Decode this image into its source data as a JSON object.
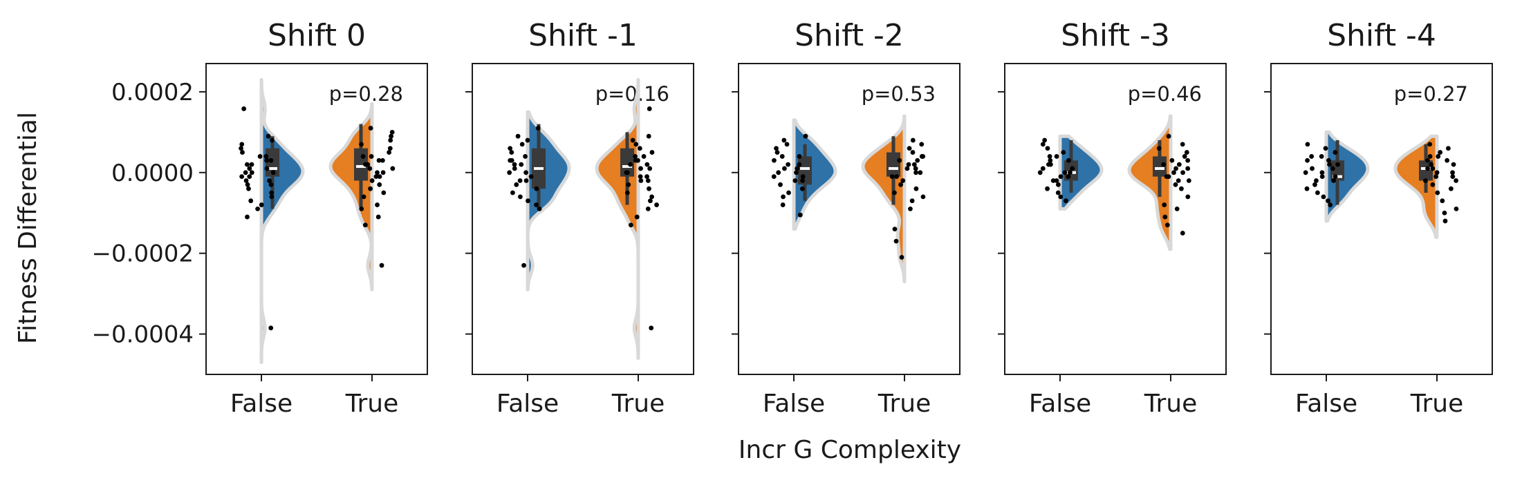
{
  "chart_data": {
    "type": "violin",
    "xlabel": "Incr G Complexity",
    "ylabel": "Fitness Differential",
    "ylim": [
      -0.0005,
      0.00027
    ],
    "y_ticks": [
      0.0002,
      0.0,
      -0.0002,
      -0.0004
    ],
    "y_tick_labels": [
      "0.0002",
      "0.0000",
      "−0.0002",
      "−0.0004"
    ],
    "categories": [
      "False",
      "True"
    ],
    "series_colors": {
      "False": "#2e72a8",
      "True": "#e67e22"
    },
    "panels": [
      {
        "title": "Shift 0",
        "p_label": "p=0.28",
        "groups": [
          {
            "category": "False",
            "q1": -1e-05,
            "median": 1e-05,
            "q3": 6e-05,
            "whisker_low": -9e-05,
            "whisker_high": 9e-05,
            "kde_max": 0.00023,
            "kde_min": -0.00047,
            "points": [
              0.000158,
              9e-05,
              8e-05,
              7e-05,
              6e-05,
              5e-05,
              4e-05,
              4e-05,
              3e-05,
              3e-05,
              2e-05,
              2e-05,
              1e-05,
              1e-05,
              0.0,
              0.0,
              0.0,
              -1e-05,
              -1e-05,
              -2e-05,
              -2e-05,
              -3e-05,
              -3e-05,
              -4e-05,
              -5e-05,
              -6e-05,
              -7e-05,
              -8e-05,
              -9e-05,
              -0.00011,
              -0.000385
            ]
          },
          {
            "category": "True",
            "q1": -2e-05,
            "median": 1.5e-05,
            "q3": 6e-05,
            "whisker_low": -9e-05,
            "whisker_high": 0.00012,
            "kde_max": 0.00017,
            "kde_min": -0.00029,
            "points": [
              0.00011,
              0.0001,
              9e-05,
              8e-05,
              7e-05,
              6e-05,
              5e-05,
              4e-05,
              4e-05,
              3e-05,
              3e-05,
              2e-05,
              2e-05,
              1e-05,
              1e-05,
              0.0,
              0.0,
              -1e-05,
              -1e-05,
              -2e-05,
              -3e-05,
              -4e-05,
              -5e-05,
              -6e-05,
              -8e-05,
              -9e-05,
              -0.00011,
              -0.00013,
              -0.00023
            ]
          }
        ]
      },
      {
        "title": "Shift -1",
        "p_label": "p=0.16",
        "groups": [
          {
            "category": "False",
            "q1": -4e-05,
            "median": 1e-05,
            "q3": 6e-05,
            "whisker_low": -9e-05,
            "whisker_high": 0.00012,
            "kde_max": 0.00015,
            "kde_min": -0.00029,
            "points": [
              0.00011,
              9e-05,
              8e-05,
              7e-05,
              6e-05,
              5e-05,
              4e-05,
              3e-05,
              3e-05,
              2e-05,
              2e-05,
              1e-05,
              0.0,
              0.0,
              -1e-05,
              -2e-05,
              -2e-05,
              -3e-05,
              -4e-05,
              -5e-05,
              -6e-05,
              -7e-05,
              -8e-05,
              -9e-05,
              -0.00023
            ]
          },
          {
            "category": "True",
            "q1": -1e-05,
            "median": 1.5e-05,
            "q3": 6e-05,
            "whisker_low": -8e-05,
            "whisker_high": 0.0001,
            "kde_max": 0.00023,
            "kde_min": -0.00046,
            "points": [
              0.000158,
              9e-05,
              8e-05,
              7e-05,
              6e-05,
              5e-05,
              4e-05,
              4e-05,
              3e-05,
              3e-05,
              2e-05,
              2e-05,
              1e-05,
              1e-05,
              0.0,
              0.0,
              -1e-05,
              -1e-05,
              -2e-05,
              -2e-05,
              -3e-05,
              -4e-05,
              -5e-05,
              -6e-05,
              -7e-05,
              -8e-05,
              -9e-05,
              -0.00011,
              -0.00013,
              -0.000385
            ]
          }
        ]
      },
      {
        "title": "Shift -2",
        "p_label": "p=0.53",
        "groups": [
          {
            "category": "False",
            "q1": -3e-05,
            "median": 1e-05,
            "q3": 4e-05,
            "whisker_low": -7e-05,
            "whisker_high": 7e-05,
            "kde_max": 0.00013,
            "kde_min": -0.00014,
            "points": [
              9e-05,
              8e-05,
              7e-05,
              6e-05,
              5e-05,
              4e-05,
              4e-05,
              3e-05,
              2e-05,
              2e-05,
              1e-05,
              1e-05,
              0.0,
              0.0,
              -1e-05,
              -1e-05,
              -2e-05,
              -2e-05,
              -3e-05,
              -4e-05,
              -5e-05,
              -6e-05,
              -8e-05,
              -0.000105
            ]
          },
          {
            "category": "True",
            "q1": -1e-05,
            "median": 1e-05,
            "q3": 5e-05,
            "whisker_low": -8e-05,
            "whisker_high": 9e-05,
            "kde_max": 0.00014,
            "kde_min": -0.00027,
            "points": [
              8e-05,
              7e-05,
              6e-05,
              5e-05,
              4e-05,
              4e-05,
              3e-05,
              3e-05,
              2e-05,
              2e-05,
              1e-05,
              1e-05,
              0.0,
              0.0,
              -1e-05,
              -1e-05,
              -2e-05,
              -3e-05,
              -4e-05,
              -5e-05,
              -6e-05,
              -7e-05,
              -9e-05,
              -0.00014,
              -0.00017,
              -0.00021
            ]
          }
        ]
      },
      {
        "title": "Shift -3",
        "p_label": "p=0.46",
        "groups": [
          {
            "category": "False",
            "q1": -2e-05,
            "median": 0.0,
            "q3": 3e-05,
            "whisker_low": -5e-05,
            "whisker_high": 8e-05,
            "kde_max": 9e-05,
            "kde_min": -9e-05,
            "points": [
              8e-05,
              7e-05,
              6e-05,
              5e-05,
              4e-05,
              4e-05,
              3e-05,
              3e-05,
              2e-05,
              2e-05,
              1e-05,
              1e-05,
              0.0,
              0.0,
              0.0,
              -1e-05,
              -1e-05,
              -2e-05,
              -2e-05,
              -3e-05,
              -4e-05,
              -5e-05,
              -6e-05,
              -7e-05
            ]
          },
          {
            "category": "True",
            "q1": -1e-05,
            "median": 1e-05,
            "q3": 4e-05,
            "whisker_low": -6e-05,
            "whisker_high": 8e-05,
            "kde_max": 0.00014,
            "kde_min": -0.00019,
            "points": [
              9e-05,
              7e-05,
              6e-05,
              5e-05,
              4e-05,
              3e-05,
              3e-05,
              2e-05,
              2e-05,
              1e-05,
              1e-05,
              0.0,
              0.0,
              -1e-05,
              -1e-05,
              -2e-05,
              -2e-05,
              -3e-05,
              -4e-05,
              -6e-05,
              -8e-05,
              -9e-05,
              -0.00011,
              -0.00013,
              -0.00015
            ]
          }
        ]
      },
      {
        "title": "Shift -4",
        "p_label": "p=0.27",
        "groups": [
          {
            "category": "False",
            "q1": -2e-05,
            "median": -1e-05,
            "q3": 3e-05,
            "whisker_low": -8e-05,
            "whisker_high": 8e-05,
            "kde_max": 0.0001,
            "kde_min": -0.00012,
            "points": [
              7e-05,
              6e-05,
              5e-05,
              4e-05,
              4e-05,
              3e-05,
              3e-05,
              2e-05,
              2e-05,
              1e-05,
              1e-05,
              0.0,
              0.0,
              -1e-05,
              -1e-05,
              -2e-05,
              -2e-05,
              -3e-05,
              -4e-05,
              -5e-05,
              -6e-05,
              -7e-05,
              -8e-05
            ]
          },
          {
            "category": "True",
            "q1": -2e-05,
            "median": 1e-05,
            "q3": 3e-05,
            "whisker_low": -5e-05,
            "whisker_high": 7e-05,
            "kde_max": 9e-05,
            "kde_min": -0.00016,
            "points": [
              7e-05,
              6e-05,
              5e-05,
              4e-05,
              4e-05,
              3e-05,
              3e-05,
              2e-05,
              2e-05,
              1e-05,
              1e-05,
              0.0,
              0.0,
              -1e-05,
              -1e-05,
              -2e-05,
              -2e-05,
              -3e-05,
              -4e-05,
              -5e-05,
              -7e-05,
              -9e-05,
              -0.0001,
              -0.00012
            ]
          }
        ]
      }
    ]
  }
}
